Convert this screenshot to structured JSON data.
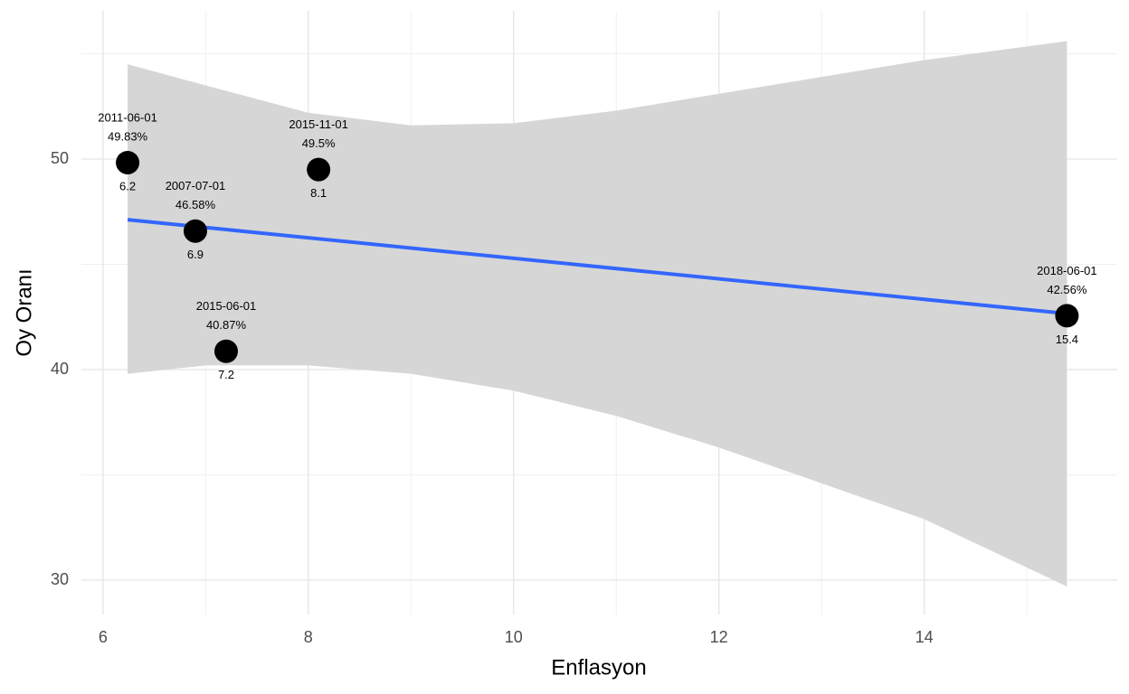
{
  "chart_data": {
    "type": "scatter",
    "x_label": "Enflasyon",
    "y_label": "Oy Oranı",
    "x": [
      6.24,
      6.9,
      7.2,
      8.1,
      15.39
    ],
    "x_labels": [
      "6.2",
      "6.9",
      "7.2",
      "8.1",
      "15.4"
    ],
    "y": [
      49.83,
      46.58,
      40.87,
      49.5,
      42.56
    ],
    "value_labels": [
      "49.83%",
      "46.58%",
      "40.87%",
      "49.5%",
      "42.56%"
    ],
    "point_labels": [
      "2011-06-01",
      "2007-07-01",
      "2015-06-01",
      "2015-11-01",
      "2018-06-01"
    ],
    "color": "#000000",
    "fit": {
      "color": "#3366ff",
      "x": [
        6.24,
        15.39
      ],
      "y": [
        47.12,
        42.66
      ]
    },
    "band": {
      "color": "#d6d6d6",
      "x": [
        6.24,
        7,
        8,
        9,
        10,
        11,
        12,
        13,
        14,
        15.39
      ],
      "upper": [
        54.5,
        53.5,
        52.2,
        51.6,
        51.7,
        52.3,
        53.1,
        53.9,
        54.7,
        55.6
      ],
      "lower": [
        39.8,
        40.2,
        40.2,
        39.8,
        39.0,
        37.8,
        36.3,
        34.6,
        32.9,
        29.7
      ]
    },
    "xlim": [
      5.79,
      15.88
    ],
    "ylim": [
      28.37,
      57.04
    ],
    "xticks": [
      6,
      8,
      10,
      12,
      14
    ],
    "yticks": [
      30,
      40,
      50
    ],
    "x_minor_ticks": [
      7,
      9,
      11,
      13,
      15
    ],
    "y_minor_ticks": [
      35,
      45,
      55
    ],
    "grid": true
  }
}
